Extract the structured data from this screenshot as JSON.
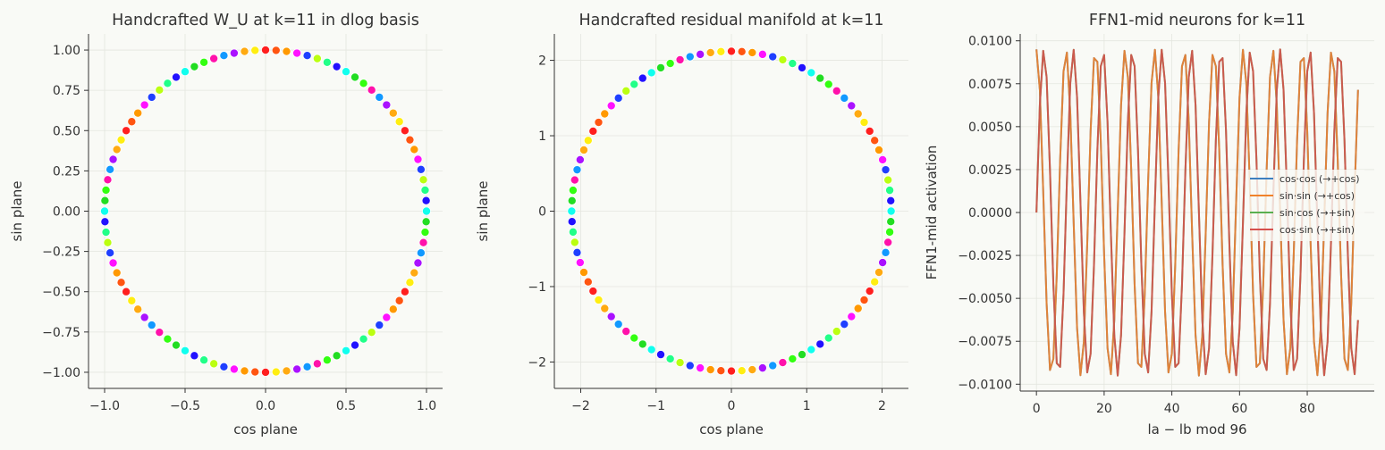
{
  "chart_data": [
    {
      "type": "scatter",
      "title": "Handcrafted W_U at k=11 in dlog basis",
      "xlabel": "cos plane",
      "ylabel": "sin plane",
      "xlim": [
        -1.1,
        1.1
      ],
      "ylim": [
        -1.1,
        1.1
      ],
      "xticks": [
        -1.0,
        -0.5,
        0.0,
        0.5,
        1.0
      ],
      "xtick_labels": [
        "−1.0",
        "−0.5",
        "0.0",
        "0.5",
        "1.0"
      ],
      "yticks": [
        -1.0,
        -0.75,
        -0.5,
        -0.25,
        0.0,
        0.25,
        0.5,
        0.75,
        1.0
      ],
      "ytick_labels": [
        "−1.00",
        "−0.75",
        "−0.50",
        "−0.25",
        "0.00",
        "0.25",
        "0.50",
        "0.75",
        "1.00"
      ],
      "grid": true,
      "points": {
        "shape": "circle",
        "count": 96,
        "radius": 1.0,
        "angle_step_deg": 3.75,
        "colors": [
          "#ff1f1f",
          "#22dd22",
          "#ff9900",
          "#ff11aa",
          "#1f3fff",
          "#aa11ff",
          "#22ff88",
          "#ffee11",
          "#11ffee",
          "#ff5511",
          "#33ff11",
          "#ff11ff",
          "#1199ff",
          "#bbff11",
          "#ffaa11",
          "#2211ff"
        ]
      }
    },
    {
      "type": "scatter",
      "title": "Handcrafted residual manifold at k=11",
      "xlabel": "cos plane",
      "ylabel": "sin plane",
      "xlim": [
        -2.35,
        2.35
      ],
      "ylim": [
        -2.35,
        2.35
      ],
      "xticks": [
        -2,
        -1,
        0,
        1,
        2
      ],
      "xtick_labels": [
        "−2",
        "−1",
        "0",
        "1",
        "2"
      ],
      "yticks": [
        -2,
        -1,
        0,
        1,
        2
      ],
      "ytick_labels": [
        "−2",
        "−1",
        "0",
        "1",
        "2"
      ],
      "grid": true,
      "points": {
        "shape": "circle",
        "count": 96,
        "radius": 2.12,
        "angle_step_deg": 3.75,
        "colors": [
          "#ff1f1f",
          "#22dd22",
          "#ff9900",
          "#ff11aa",
          "#1f3fff",
          "#aa11ff",
          "#22ff88",
          "#ffee11",
          "#11ffee",
          "#ff5511",
          "#33ff11",
          "#ff11ff",
          "#1199ff",
          "#bbff11",
          "#ffaa11",
          "#2211ff"
        ]
      }
    },
    {
      "type": "line",
      "title": "FFN1-mid neurons for k=11",
      "xlabel": "la − lb mod 96",
      "ylabel": "FFN1-mid activation",
      "xlim": [
        -4.8,
        99.8
      ],
      "ylim": [
        -0.0104,
        0.0104
      ],
      "xticks": [
        0,
        20,
        40,
        60,
        80
      ],
      "xtick_labels": [
        "0",
        "20",
        "40",
        "60",
        "80"
      ],
      "yticks": [
        -0.01,
        -0.0075,
        -0.005,
        -0.0025,
        0.0,
        0.0025,
        0.005,
        0.0075,
        0.01
      ],
      "ytick_labels": [
        "−0.0100",
        "−0.0075",
        "−0.0050",
        "−0.0025",
        "0.0000",
        "0.0025",
        "0.0050",
        "0.0075",
        "0.0100"
      ],
      "grid": true,
      "legend_position": "center-right",
      "x": {
        "start": 0,
        "end": 95,
        "step": 1
      },
      "series": [
        {
          "name": "cos·cos (→+cos)",
          "color": "#3f7fbf",
          "amplitude": 0.0095,
          "cycles": 11,
          "phase": "cos"
        },
        {
          "name": "sin·sin (→+cos)",
          "color": "#f0822a",
          "amplitude": 0.0095,
          "cycles": 11,
          "phase": "cos"
        },
        {
          "name": "sin·cos (→+sin)",
          "color": "#5aaf50",
          "amplitude": 0.0095,
          "cycles": 11,
          "phase": "sin"
        },
        {
          "name": "cos·sin (→+sin)",
          "color": "#d6504d",
          "amplitude": 0.0095,
          "cycles": 11,
          "phase": "sin"
        }
      ]
    }
  ]
}
